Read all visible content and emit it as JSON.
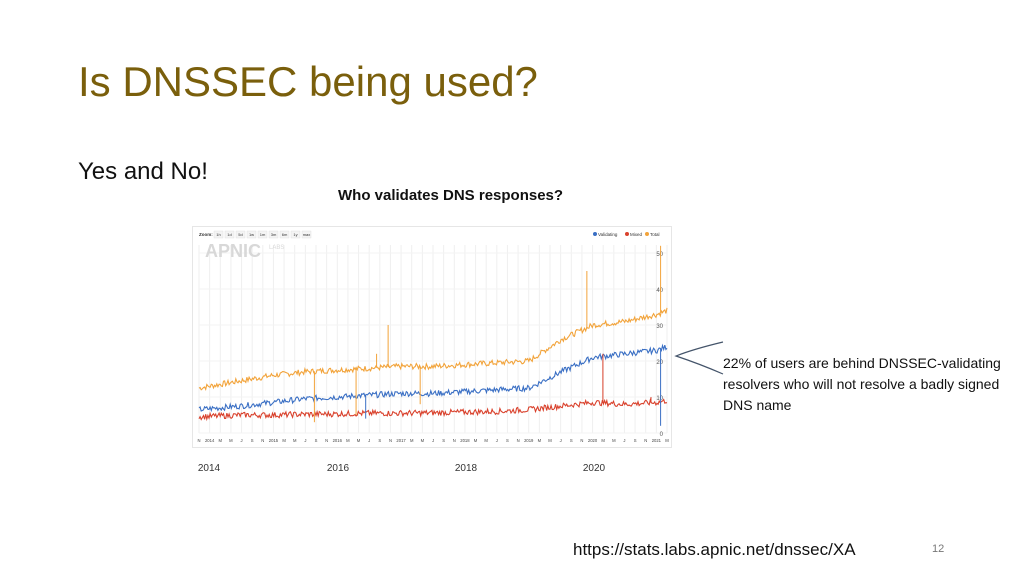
{
  "slide": {
    "title": "Is DNSSEC being used?",
    "subtitle": "Yes and No!",
    "chart_title": "Who validates DNS responses?",
    "annotation": "22% of users are behind DNSSEC-validating resolvers who will not resolve a badly signed DNS name",
    "source_url": "https://stats.labs.apnic.net/dnssec/XA",
    "page_number": "12",
    "year_labels": [
      "2014",
      "2016",
      "2018",
      "2020"
    ]
  },
  "chart_data": {
    "type": "line",
    "logo_text": "APNIC",
    "logo_sub": "LABS",
    "zoom_label": "Zoom:",
    "zoom_buttons": [
      "1h",
      "1d",
      "5d",
      "1w",
      "1m",
      "3m",
      "6m",
      "1y",
      "max"
    ],
    "legend": [
      {
        "name": "Validating",
        "color": "#3a6fc4"
      },
      {
        "name": "Mixed",
        "color": "#d9412c"
      },
      {
        "name": "Total",
        "color": "#f2a33a"
      }
    ],
    "ylim": [
      0,
      55
    ],
    "yticks": [
      0,
      10,
      20,
      30,
      40,
      50
    ],
    "x_tick_labels": [
      "N",
      "2014",
      "M",
      "M",
      "J",
      "S",
      "N",
      "2015",
      "M",
      "M",
      "J",
      "S",
      "N",
      "2016",
      "M",
      "M",
      "J",
      "S",
      "N",
      "2017",
      "M",
      "M",
      "J",
      "S",
      "N",
      "2018",
      "M",
      "M",
      "J",
      "S",
      "N",
      "2019",
      "M",
      "M",
      "J",
      "S",
      "N",
      "2020",
      "M",
      "M",
      "J",
      "S",
      "N",
      "2021",
      "M"
    ],
    "x_years": [
      2013.85,
      2014.5,
      2015.0,
      2015.5,
      2016.0,
      2016.5,
      2017.0,
      2017.5,
      2018.0,
      2018.5,
      2019.0,
      2019.5,
      2020.0,
      2020.5,
      2021.0,
      2021.15
    ],
    "series": [
      {
        "name": "Total",
        "color": "#f2a33a",
        "values": [
          12.5,
          14.5,
          16,
          17,
          17.5,
          18,
          18.5,
          18.5,
          19,
          19.5,
          20,
          26,
          30,
          31,
          33,
          34
        ]
      },
      {
        "name": "Validating",
        "color": "#3a6fc4",
        "values": [
          6.5,
          7.5,
          8.5,
          9.5,
          10,
          10.5,
          11,
          11,
          11.5,
          12,
          12.5,
          17,
          21,
          22,
          23,
          24
        ]
      },
      {
        "name": "Mixed",
        "color": "#d9412c",
        "values": [
          4.5,
          5,
          5,
          5.2,
          5.3,
          5.5,
          5.5,
          5.6,
          5.8,
          6,
          6.5,
          7.5,
          8.5,
          8,
          8.5,
          9
        ]
      }
    ],
    "spikes": [
      {
        "year": 2015.65,
        "series": "Total",
        "value": 3
      },
      {
        "year": 2016.3,
        "series": "Total",
        "value": 5
      },
      {
        "year": 2016.45,
        "series": "Validating",
        "value": 4
      },
      {
        "year": 2016.62,
        "series": "Total",
        "value": 22
      },
      {
        "year": 2016.8,
        "series": "Total",
        "value": 30
      },
      {
        "year": 2017.3,
        "series": "Total",
        "value": 8
      },
      {
        "year": 2019.9,
        "series": "Total",
        "value": 45
      },
      {
        "year": 2020.15,
        "series": "Mixed",
        "value": 22
      },
      {
        "year": 2020.9,
        "series": "Mixed",
        "value": 10
      },
      {
        "year": 2021.05,
        "series": "Total",
        "value": 52
      },
      {
        "year": 2021.05,
        "series": "Validating",
        "value": 2
      }
    ]
  }
}
